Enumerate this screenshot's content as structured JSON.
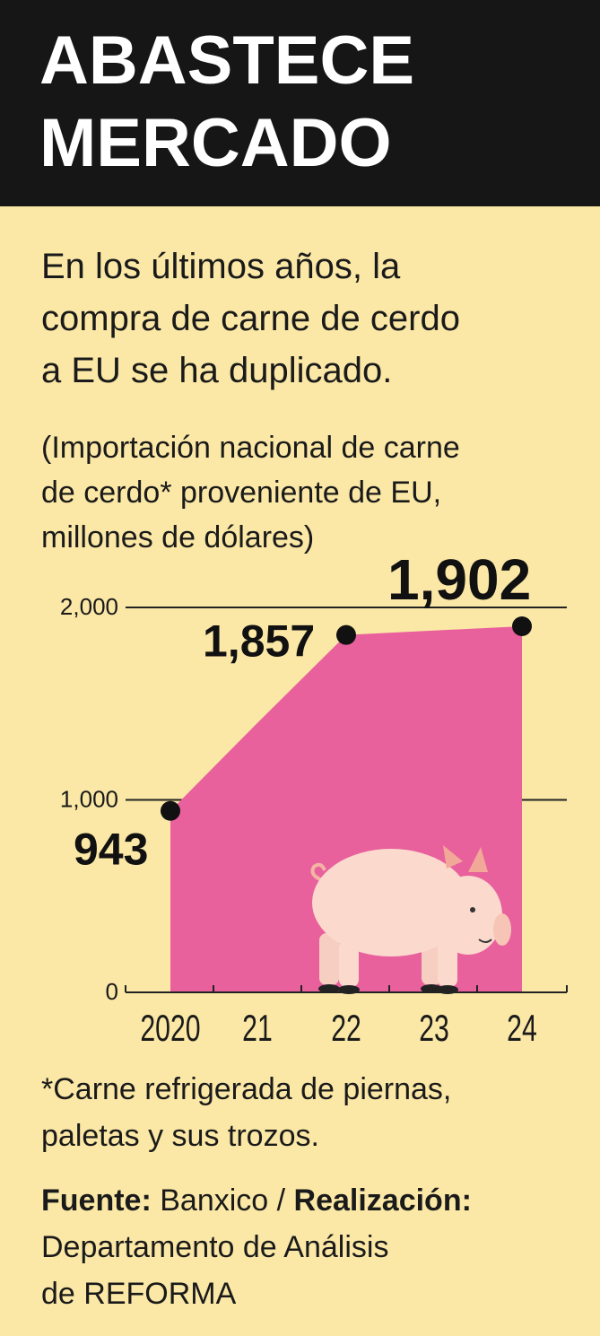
{
  "header": {
    "title_line1": "ABASTECE",
    "title_line2": "MERCADO"
  },
  "subtitle": {
    "line1": "En los últimos años, la",
    "line2": "compra de carne de cerdo",
    "line3": "a EU se ha duplicado."
  },
  "unit_note": {
    "line1": "(Importación nacional de carne",
    "line2": "de cerdo* proveniente de EU,",
    "line3": "millones de dólares)"
  },
  "chart_data": {
    "type": "area",
    "x": [
      "2020",
      "21",
      "22",
      "23",
      "24"
    ],
    "values": [
      943,
      1400,
      1857,
      1880,
      1902
    ],
    "labeled_points": [
      {
        "x": "2020",
        "value": 943,
        "label": "943"
      },
      {
        "x": "22",
        "value": 1857,
        "label": "1,857"
      },
      {
        "x": "24",
        "value": 1902,
        "label": "1,902"
      }
    ],
    "y_ticks": [
      {
        "value": 0,
        "label": "0"
      },
      {
        "value": 1000,
        "label": "1,000"
      },
      {
        "value": 2000,
        "label": "2,000"
      }
    ],
    "ylim": [
      0,
      2000
    ],
    "grid": true,
    "fill_color": "#e8609c",
    "point_color": "#111111",
    "illustration": "pig-illustration"
  },
  "footnote": {
    "line1": "*Carne refrigerada de piernas,",
    "line2": "paletas y sus trozos."
  },
  "credits": {
    "source_label": "Fuente:",
    "source_value": " Banxico / ",
    "made_by_label": "Realización:",
    "made_by_line2": "Departamento de Análisis",
    "made_by_line3": "de REFORMA"
  },
  "colors": {
    "background": "#fbe8a6",
    "header_bg": "#161616",
    "area_fill": "#e8609c"
  }
}
